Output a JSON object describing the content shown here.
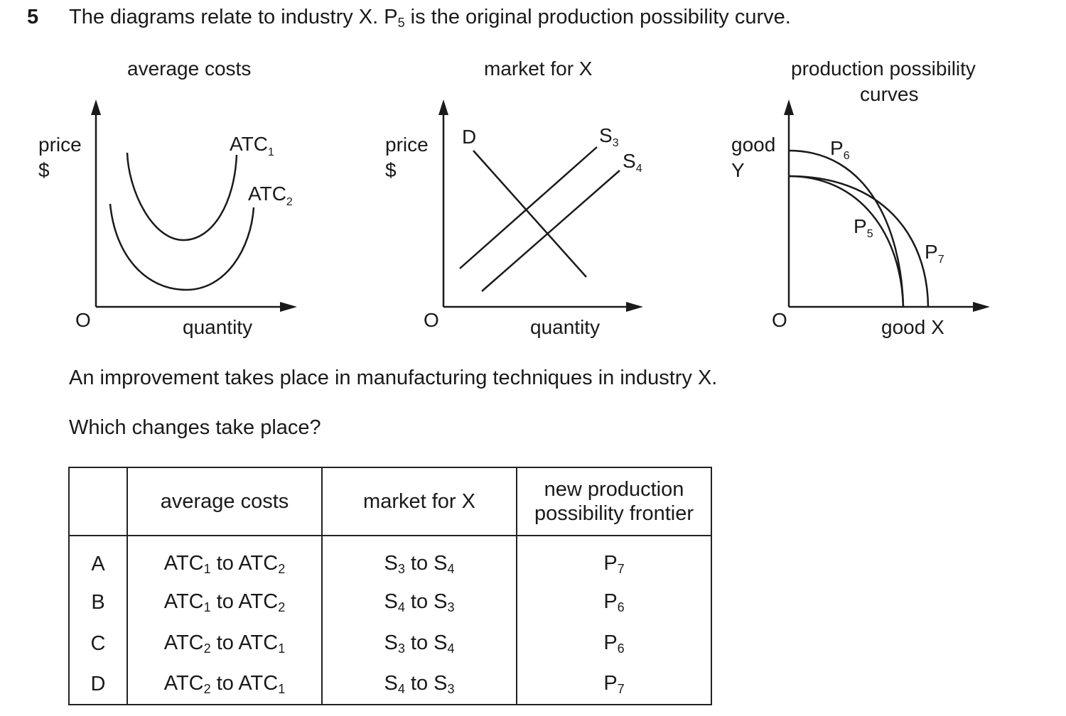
{
  "question": {
    "number": "5",
    "stem_before": "The diagrams relate to industry X. P",
    "stem_sub": "5",
    "stem_after": " is the original production possibility curve.",
    "statement": "An improvement takes place in manufacturing techniques in industry X.",
    "prompt": "Which changes take place?"
  },
  "diagrams": {
    "average_costs": {
      "title": "average costs",
      "y_label_1": "price",
      "y_label_2": "$",
      "origin": "O",
      "x_label": "quantity",
      "curve1_main": "ATC",
      "curve1_sub": "1",
      "curve2_main": "ATC",
      "curve2_sub": "2"
    },
    "market": {
      "title": "market for X",
      "y_label_1": "price",
      "y_label_2": "$",
      "origin": "O",
      "x_label": "quantity",
      "demand": "D",
      "supply1_main": "S",
      "supply1_sub": "3",
      "supply2_main": "S",
      "supply2_sub": "4"
    },
    "ppc": {
      "title_1": "production possibility",
      "title_2": "curves",
      "y_label_1": "good",
      "y_label_2": "Y",
      "origin": "O",
      "x_label": "good X",
      "p6_main": "P",
      "p6_sub": "6",
      "p5_main": "P",
      "p5_sub": "5",
      "p7_main": "P",
      "p7_sub": "7"
    }
  },
  "table": {
    "headers": {
      "average_costs": "average costs",
      "market": "market for X",
      "ppf_1": "new production",
      "ppf_2": "possibility frontier"
    },
    "rows": [
      {
        "label": "A",
        "ac_from": "ATC",
        "ac_from_sub": "1",
        "to1": " to ",
        "ac_to": "ATC",
        "ac_to_sub": "2",
        "m_from": "S",
        "m_from_sub": "3",
        "to2": " to ",
        "m_to": "S",
        "m_to_sub": "4",
        "ppf": "P",
        "ppf_sub": "7"
      },
      {
        "label": "B",
        "ac_from": "ATC",
        "ac_from_sub": "1",
        "to1": " to ",
        "ac_to": "ATC",
        "ac_to_sub": "2",
        "m_from": "S",
        "m_from_sub": "4",
        "to2": " to ",
        "m_to": "S",
        "m_to_sub": "3",
        "ppf": "P",
        "ppf_sub": "6"
      },
      {
        "label": "C",
        "ac_from": "ATC",
        "ac_from_sub": "2",
        "to1": " to ",
        "ac_to": "ATC",
        "ac_to_sub": "1",
        "m_from": "S",
        "m_from_sub": "3",
        "to2": " to ",
        "m_to": "S",
        "m_to_sub": "4",
        "ppf": "P",
        "ppf_sub": "6"
      },
      {
        "label": "D",
        "ac_from": "ATC",
        "ac_from_sub": "2",
        "to1": " to ",
        "ac_to": "ATC",
        "ac_to_sub": "1",
        "m_from": "S",
        "m_from_sub": "4",
        "to2": " to ",
        "m_to": "S",
        "m_to_sub": "3",
        "ppf": "P",
        "ppf_sub": "7"
      }
    ]
  }
}
